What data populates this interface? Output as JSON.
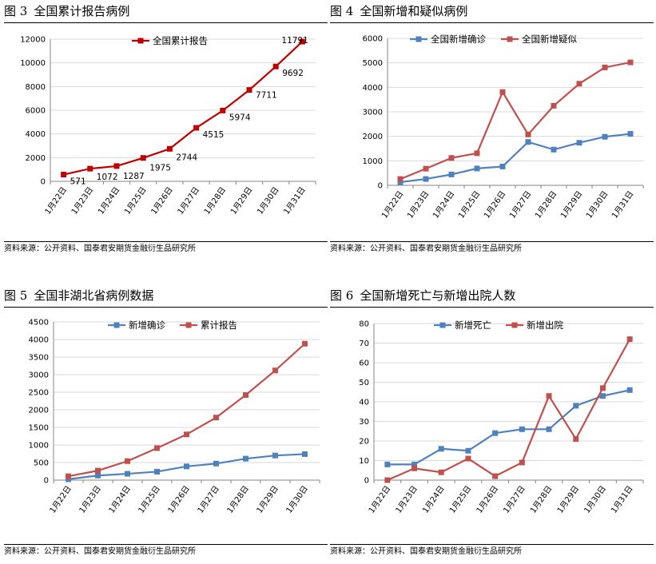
{
  "panels": [
    {
      "fig_no": "图 3",
      "title": "全国累计报告病例",
      "source": "资料来源：公开资料、国泰君安期货金融衍生品研究所",
      "chart_data": {
        "type": "line",
        "categories": [
          "1月22日",
          "1月23日",
          "1月24日",
          "1月25日",
          "1月26日",
          "1月27日",
          "1月28日",
          "1月29日",
          "1月30日",
          "1月31日"
        ],
        "series": [
          {
            "name": "全国累计报告",
            "color": "#c00000",
            "values": [
              571,
              1072,
              1287,
              1975,
              2744,
              4515,
              5974,
              7711,
              9692,
              11791
            ]
          }
        ],
        "data_labels": [
          "571",
          "1072",
          "1287",
          "1975",
          "2744",
          "4515",
          "5974",
          "7711",
          "9692",
          "11791"
        ],
        "yticks": [
          "0",
          "2000",
          "4000",
          "6000",
          "8000",
          "10000",
          "12000"
        ],
        "ylim": [
          0,
          12000
        ],
        "grid": true,
        "legend": "top-center"
      }
    },
    {
      "fig_no": "图 4",
      "title": "全国新增和疑似病例",
      "source": "资料来源：公开资料、国泰君安期货金融衍生品研究所",
      "chart_data": {
        "type": "line",
        "categories": [
          "1月22日",
          "1月23日",
          "1月24日",
          "1月25日",
          "1月26日",
          "1月27日",
          "1月28日",
          "1月29日",
          "1月30日",
          "1月31日"
        ],
        "series": [
          {
            "name": "全国新增确诊",
            "color": "#4f81bd",
            "values": [
              131,
              259,
              444,
              688,
              769,
              1771,
              1459,
              1737,
              1982,
              2102
            ]
          },
          {
            "name": "全国新增疑似",
            "color": "#c0504d",
            "values": [
              257,
              680,
              1118,
              1309,
              3806,
              2077,
              3248,
              4148,
              4812,
              5019
            ]
          }
        ],
        "yticks": [
          "0",
          "1000",
          "2000",
          "3000",
          "4000",
          "5000",
          "6000"
        ],
        "ylim": [
          0,
          6000
        ],
        "grid": true,
        "legend": "top-center"
      }
    },
    {
      "fig_no": "图 5",
      "title": "全国非湖北省病例数据",
      "source": "资料来源：公开资料、国泰君安期货金融衍生品研究所",
      "chart_data": {
        "type": "line",
        "categories": [
          "1月22日",
          "1月23日",
          "1月24日",
          "1月25日",
          "1月26日",
          "1月27日",
          "1月28日",
          "1月29日",
          "1月30日"
        ],
        "series": [
          {
            "name": "新增确诊",
            "color": "#4f81bd",
            "values": [
              25,
              130,
              180,
              240,
              390,
              470,
              610,
              700,
              740
            ]
          },
          {
            "name": "累计报告",
            "color": "#c0504d",
            "values": [
              110,
              270,
              540,
              910,
              1300,
              1780,
              2420,
              3120,
              3880
            ]
          }
        ],
        "yticks": [
          "0",
          "500",
          "1000",
          "1500",
          "2000",
          "2500",
          "3000",
          "3500",
          "4000",
          "4500"
        ],
        "ylim": [
          0,
          4500
        ],
        "grid": true,
        "legend": "top-center"
      }
    },
    {
      "fig_no": "图 6",
      "title": "全国新增死亡与新增出院人数",
      "source": "资料来源：公开资料、国泰君安期货金融衍生品研究所",
      "chart_data": {
        "type": "line",
        "categories": [
          "1月22日",
          "1月23日",
          "1月24日",
          "1月25日",
          "1月26日",
          "1月27日",
          "1月28日",
          "1月29日",
          "1月30日",
          "1月31日"
        ],
        "series": [
          {
            "name": "新增死亡",
            "color": "#4f81bd",
            "values": [
              8,
              8,
              16,
              15,
              24,
              26,
              26,
              38,
              43,
              46
            ]
          },
          {
            "name": "新增出院",
            "color": "#c0504d",
            "values": [
              0,
              6,
              4,
              11,
              2,
              9,
              43,
              21,
              47,
              72
            ]
          }
        ],
        "yticks": [
          "0",
          "10",
          "20",
          "30",
          "40",
          "50",
          "60",
          "70",
          "80"
        ],
        "ylim": [
          0,
          80
        ],
        "grid": true,
        "legend": "top-center"
      }
    }
  ]
}
